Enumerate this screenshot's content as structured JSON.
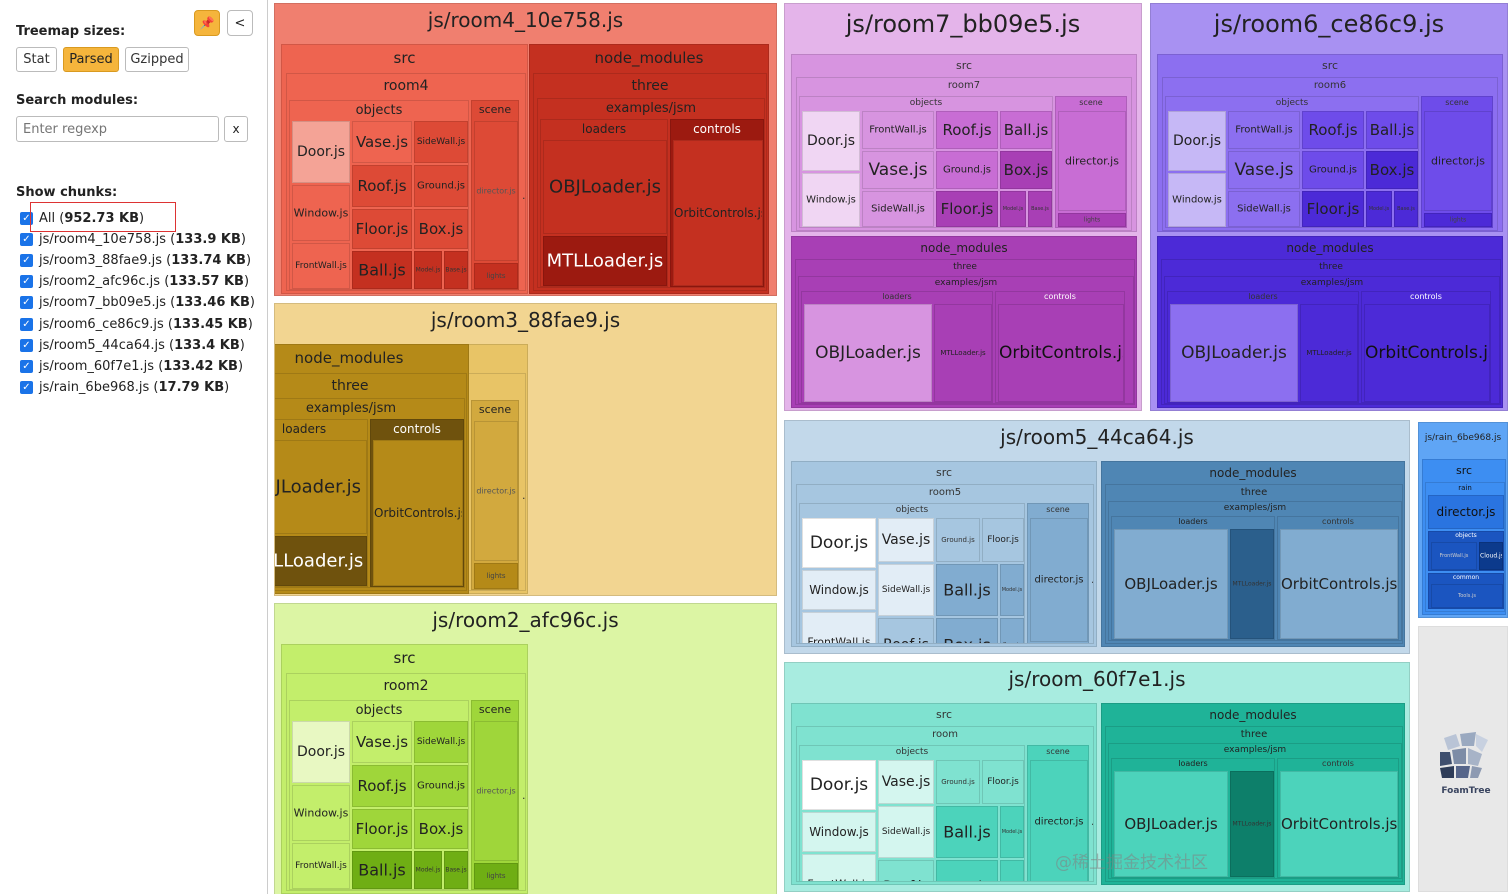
{
  "sidebar": {
    "pin_label": "📌",
    "collapse_label": "<",
    "treemap_sizes_label": "Treemap sizes:",
    "size_options": [
      {
        "label": "Stat",
        "active": false
      },
      {
        "label": "Parsed",
        "active": true
      },
      {
        "label": "Gzipped",
        "active": false
      }
    ],
    "search_label": "Search modules:",
    "search_placeholder": "Enter regexp",
    "search_clear": "x",
    "show_chunks_label": "Show chunks:",
    "chunks": [
      {
        "name": "All",
        "size": "952.73 KB",
        "checked": true
      },
      {
        "name": "js/room4_10e758.js",
        "size": "133.9 KB",
        "checked": true
      },
      {
        "name": "js/room3_88fae9.js",
        "size": "133.74 KB",
        "checked": true
      },
      {
        "name": "js/room2_afc96c.js",
        "size": "133.57 KB",
        "checked": true
      },
      {
        "name": "js/room7_bb09e5.js",
        "size": "133.46 KB",
        "checked": true
      },
      {
        "name": "js/room6_ce86c9.js",
        "size": "133.45 KB",
        "checked": true
      },
      {
        "name": "js/room5_44ca64.js",
        "size": "133.4 KB",
        "checked": true
      },
      {
        "name": "js/room_60f7e1.js",
        "size": "133.42 KB",
        "checked": true
      },
      {
        "name": "js/rain_6be968.js",
        "size": "17.79 KB",
        "checked": true
      }
    ]
  },
  "treemap": {
    "rooms": [
      {
        "key": "room4",
        "title": "js/room4_10e758.js",
        "room": "room4",
        "colors": {
          "bg": "#f07f6f",
          "main": "#ee6450",
          "dark": "#dd4a36",
          "darker": "#c43020",
          "darkest": "#9c1a10",
          "light": "#f4a396"
        }
      },
      {
        "key": "room3",
        "title": "js/room3_88fae9.js",
        "room": "room3",
        "colors": {
          "bg": "#f2d591",
          "main": "#e8c466",
          "dark": "#d2a93e",
          "darker": "#b58a18",
          "darkest": "#6f520d",
          "light": "#f5e2b0"
        }
      },
      {
        "key": "room2",
        "title": "js/room2_afc96c.js",
        "room": "room2",
        "colors": {
          "bg": "#dcf5a4",
          "main": "#c3ee6b",
          "dark": "#9fd63a",
          "darker": "#6fae14",
          "darkest": "#3c6908",
          "light": "#e8f8c2"
        }
      },
      {
        "key": "room7",
        "title": "js/room7_bb09e5.js",
        "room": "room7",
        "colors": {
          "bg": "#e4b4ea",
          "main": "#d794e0",
          "dark": "#c86dd4",
          "darker": "#a83fb5",
          "darkest": "#7c2588",
          "light": "#f0d6f3"
        }
      },
      {
        "key": "room6",
        "title": "js/room6_ce86c9.js",
        "room": "room6",
        "colors": {
          "bg": "#a891f2",
          "main": "#8c6ff0",
          "dark": "#6e4cea",
          "darker": "#4c2ad7",
          "darkest": "#2d1596",
          "light": "#c6b8f6"
        }
      },
      {
        "key": "room5",
        "title": "js/room5_44ca64.js",
        "room": "room5",
        "colors": {
          "bg": "#c2d8ea",
          "main": "#a6c6e0",
          "dark": "#81acd0",
          "darker": "#4f86b4",
          "darkest": "#2b5f8c",
          "light": "#e2edf6"
        }
      },
      {
        "key": "room",
        "title": "js/room_60f7e1.js",
        "room": "room",
        "colors": {
          "bg": "#a8ece0",
          "main": "#7fe2d0",
          "dark": "#4cd3bb",
          "darker": "#1fb398",
          "darkest": "#0d7f6a",
          "light": "#d4f6ef"
        }
      }
    ],
    "labels": {
      "src": "src",
      "node_modules": "node_modules",
      "objects": "objects",
      "scene": "scene",
      "three": "three",
      "examples": "examples/jsm",
      "loaders": "loaders",
      "controls": "controls",
      "door": "Door.js",
      "vase": "Vase.js",
      "sidewall": "SideWall.js",
      "window": "Window.js",
      "roof": "Roof.js",
      "ground": "Ground.js",
      "floor": "Floor.js",
      "box": "Box.js",
      "frontwall": "FrontWall.js",
      "ball": "Ball.js",
      "model": "Model.js",
      "base": "Base.js",
      "director": "director.js",
      "objloader": "OBJLoader.js",
      "mtlloader": "MTLLoader.js",
      "orbit": "OrbitControls.js",
      "lights": "lights",
      "ellipsis": "..."
    },
    "rain": {
      "title": "js/rain_6be968.js",
      "src": "src",
      "rain": "rain",
      "director": "director.js",
      "objects": "objects",
      "frontwall": "FrontWall.js",
      "cloud": "Cloud.js",
      "common": "common",
      "tools": "Tools.js",
      "colors": {
        "bg": "#5fa5f5",
        "main": "#3d8ef2",
        "dark": "#2a74e0",
        "darker": "#1b55c0",
        "darkest": "#0c3a8c"
      }
    },
    "foamtree_label": "FoamTree"
  },
  "watermark": "@稀土掘金技术社区"
}
